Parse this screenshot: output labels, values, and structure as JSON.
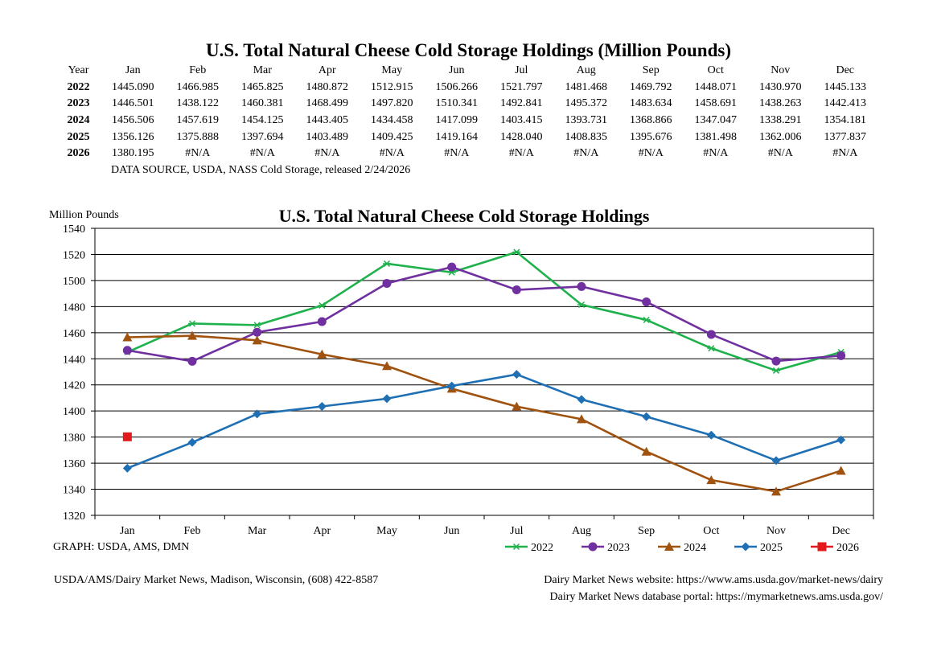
{
  "table": {
    "title": "U.S. Total Natural Cheese Cold Storage Holdings (Million Pounds)",
    "year_header": "Year",
    "months": [
      "Jan",
      "Feb",
      "Mar",
      "Apr",
      "May",
      "Jun",
      "Jul",
      "Aug",
      "Sep",
      "Oct",
      "Nov",
      "Dec"
    ],
    "rows": [
      {
        "year": "2022",
        "values": [
          "1445.090",
          "1466.985",
          "1465.825",
          "1480.872",
          "1512.915",
          "1506.266",
          "1521.797",
          "1481.468",
          "1469.792",
          "1448.071",
          "1430.970",
          "1445.133"
        ]
      },
      {
        "year": "2023",
        "values": [
          "1446.501",
          "1438.122",
          "1460.381",
          "1468.499",
          "1497.820",
          "1510.341",
          "1492.841",
          "1495.372",
          "1483.634",
          "1458.691",
          "1438.263",
          "1442.413"
        ]
      },
      {
        "year": "2024",
        "values": [
          "1456.506",
          "1457.619",
          "1454.125",
          "1443.405",
          "1434.458",
          "1417.099",
          "1403.415",
          "1393.731",
          "1368.866",
          "1347.047",
          "1338.291",
          "1354.181"
        ]
      },
      {
        "year": "2025",
        "values": [
          "1356.126",
          "1375.888",
          "1397.694",
          "1403.489",
          "1409.425",
          "1419.164",
          "1428.040",
          "1408.835",
          "1395.676",
          "1381.498",
          "1362.006",
          "1377.837"
        ]
      },
      {
        "year": "2026",
        "values": [
          "1380.195",
          "#N/A",
          "#N/A",
          "#N/A",
          "#N/A",
          "#N/A",
          "#N/A",
          "#N/A",
          "#N/A",
          "#N/A",
          "#N/A",
          "#N/A"
        ]
      }
    ],
    "source": "DATA SOURCE, USDA, NASS Cold Storage, released 2/24/2026"
  },
  "chart_data": {
    "type": "line",
    "title": "U.S. Total Natural Cheese Cold Storage Holdings",
    "ylabel": "Million Pounds",
    "xlabel": "",
    "categories": [
      "Jan",
      "Feb",
      "Mar",
      "Apr",
      "May",
      "Jun",
      "Jul",
      "Aug",
      "Sep",
      "Oct",
      "Nov",
      "Dec"
    ],
    "ylim": [
      1320,
      1540
    ],
    "yticks": [
      "1320",
      "1340",
      "1360",
      "1380",
      "1400",
      "1420",
      "1440",
      "1460",
      "1480",
      "1500",
      "1520",
      "1540"
    ],
    "grid": "horizontal",
    "legend_position": "bottom-right",
    "series": [
      {
        "name": "2022",
        "color": "#1fb14c",
        "marker": "asterisk",
        "values": [
          1445.09,
          1466.985,
          1465.825,
          1480.872,
          1512.915,
          1506.266,
          1521.797,
          1481.468,
          1469.792,
          1448.071,
          1430.97,
          1445.133
        ]
      },
      {
        "name": "2023",
        "color": "#7030a0",
        "marker": "circle",
        "values": [
          1446.501,
          1438.122,
          1460.381,
          1468.499,
          1497.82,
          1510.341,
          1492.841,
          1495.372,
          1483.634,
          1458.691,
          1438.263,
          1442.413
        ]
      },
      {
        "name": "2024",
        "color": "#a0520f",
        "marker": "triangle",
        "values": [
          1456.506,
          1457.619,
          1454.125,
          1443.405,
          1434.458,
          1417.099,
          1403.415,
          1393.731,
          1368.866,
          1347.047,
          1338.291,
          1354.181
        ]
      },
      {
        "name": "2025",
        "color": "#1f6fb4",
        "marker": "diamond",
        "values": [
          1356.126,
          1375.888,
          1397.694,
          1403.489,
          1409.425,
          1419.164,
          1428.04,
          1408.835,
          1395.676,
          1381.498,
          1362.006,
          1377.837
        ]
      },
      {
        "name": "2026",
        "color": "#e31a1c",
        "marker": "square",
        "values": [
          1380.195,
          null,
          null,
          null,
          null,
          null,
          null,
          null,
          null,
          null,
          null,
          null
        ]
      }
    ]
  },
  "graph_credit": "GRAPH: USDA, AMS, DMN",
  "footer": {
    "left": "USDA/AMS/Dairy Market News, Madison, Wisconsin, (608) 422-8587",
    "right1": "Dairy Market News website:  https://www.ams.usda.gov/market-news/dairy",
    "right2": "Dairy Market News database portal:  https://mymarketnews.ams.usda.gov/"
  }
}
